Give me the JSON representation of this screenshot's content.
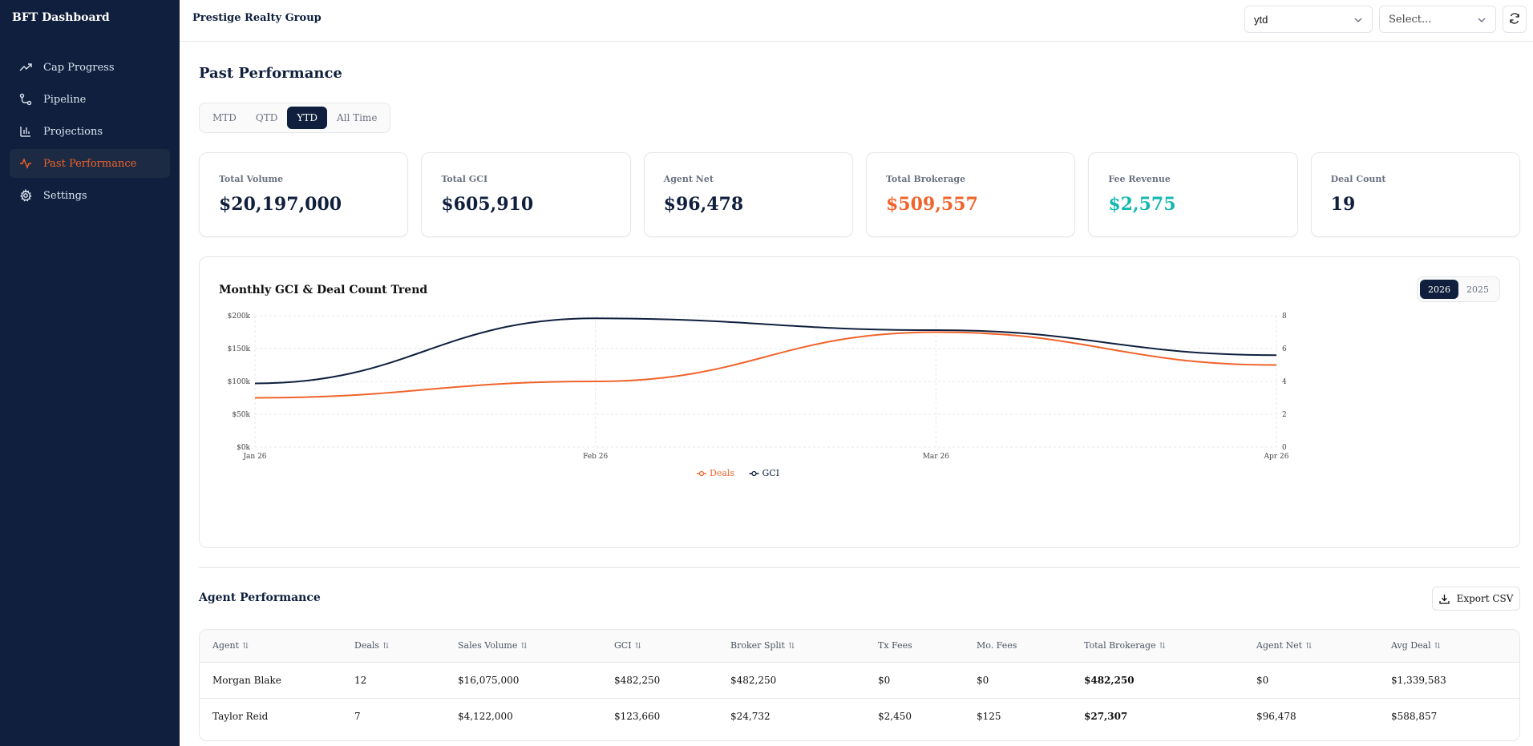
{
  "app": {
    "brand": "BFT Dashboard",
    "org": "Prestige Realty Group"
  },
  "sidebar": {
    "items": [
      {
        "label": "Cap Progress",
        "icon": "trending-up-icon"
      },
      {
        "label": "Pipeline",
        "icon": "route-icon"
      },
      {
        "label": "Projections",
        "icon": "bar-chart-icon"
      },
      {
        "label": "Past Performance",
        "icon": "activity-icon",
        "active": true
      },
      {
        "label": "Settings",
        "icon": "gear-icon"
      }
    ]
  },
  "topbar": {
    "period_value": "ytd",
    "agent_placeholder": "Select..."
  },
  "main": {
    "title": "Past Performance",
    "tabs": [
      {
        "label": "MTD"
      },
      {
        "label": "QTD"
      },
      {
        "label": "YTD",
        "active": true
      },
      {
        "label": "All Time"
      }
    ],
    "cards": [
      {
        "label": "Total Volume",
        "value": "$20,197,000",
        "color": "#0f1f3d"
      },
      {
        "label": "Total GCI",
        "value": "$605,910",
        "color": "#0f1f3d"
      },
      {
        "label": "Agent Net",
        "value": "$96,478",
        "color": "#0f1f3d"
      },
      {
        "label": "Total Brokerage",
        "value": "$509,557",
        "color": "#f0632a"
      },
      {
        "label": "Fee Revenue",
        "value": "$2,575",
        "color": "#14b8b0"
      },
      {
        "label": "Deal Count",
        "value": "19",
        "color": "#0f1f3d"
      }
    ]
  },
  "chart": {
    "title": "Monthly GCI & Deal Count Trend",
    "years": [
      {
        "label": "2026",
        "active": true
      },
      {
        "label": "2025"
      }
    ]
  },
  "chart_data": {
    "type": "line",
    "title": "Monthly GCI & Deal Count Trend",
    "categories": [
      "Jan 26",
      "Feb 26",
      "Mar 26",
      "Apr 26"
    ],
    "left_ticks": [
      "$0k",
      "$50k",
      "$100k",
      "$150k",
      "$200k"
    ],
    "right_ticks": [
      "0",
      "2",
      "4",
      "6",
      "8"
    ],
    "ylim_left": [
      0,
      200000
    ],
    "ylim_right": [
      0,
      8
    ],
    "series": [
      {
        "name": "Deals",
        "axis": "right",
        "color": "#f0632a",
        "values": [
          3,
          4,
          7,
          5
        ]
      },
      {
        "name": "GCI",
        "axis": "left",
        "color": "#0f1f3d",
        "values": [
          97000,
          196000,
          178000,
          140000
        ]
      }
    ],
    "legend": "bottom-center",
    "grid": true
  },
  "agents": {
    "title": "Agent Performance",
    "export_label": "Export CSV",
    "columns": [
      {
        "label": "Agent",
        "sortable": true
      },
      {
        "label": "Deals",
        "sortable": true
      },
      {
        "label": "Sales Volume",
        "sortable": true
      },
      {
        "label": "GCI",
        "sortable": true
      },
      {
        "label": "Broker Split",
        "sortable": true
      },
      {
        "label": "Tx Fees",
        "sortable": false
      },
      {
        "label": "Mo. Fees",
        "sortable": false
      },
      {
        "label": "Total Brokerage",
        "sortable": true
      },
      {
        "label": "Agent Net",
        "sortable": true
      },
      {
        "label": "Avg Deal",
        "sortable": true
      }
    ],
    "rows": [
      [
        "Morgan Blake",
        "12",
        "$16,075,000",
        "$482,250",
        "$482,250",
        "$0",
        "$0",
        "$482,250",
        "$0",
        "$1,339,583"
      ],
      [
        "Taylor Reid",
        "7",
        "$4,122,000",
        "$123,660",
        "$24,732",
        "$2,450",
        "$125",
        "$27,307",
        "$96,478",
        "$588,857"
      ]
    ]
  }
}
